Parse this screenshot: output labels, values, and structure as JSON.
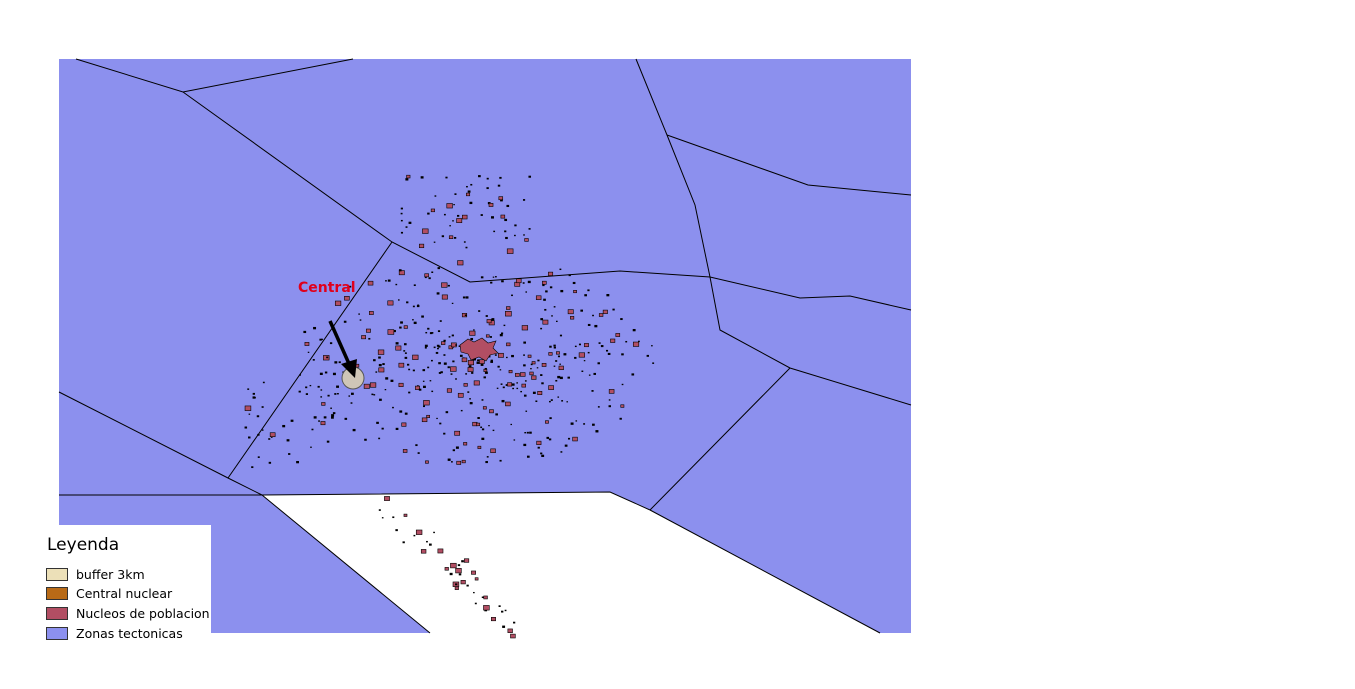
{
  "map": {
    "annotation": "Central",
    "colors": {
      "zonas": "#8c90ee",
      "buffer": "#cfc6b7",
      "nucleos": "#b24e63",
      "annotation": "#e0001b",
      "outline": "#000000"
    }
  },
  "legend": {
    "title": "Leyenda",
    "items": [
      {
        "label": "buffer 3km",
        "color": "#ece0b8"
      },
      {
        "label": "Central nuclear",
        "color": "#b86a17"
      },
      {
        "label": "Nucleos de poblacion",
        "color": "#b24e63"
      },
      {
        "label": "Zonas tectonicas",
        "color": "#8c90ee"
      }
    ]
  }
}
